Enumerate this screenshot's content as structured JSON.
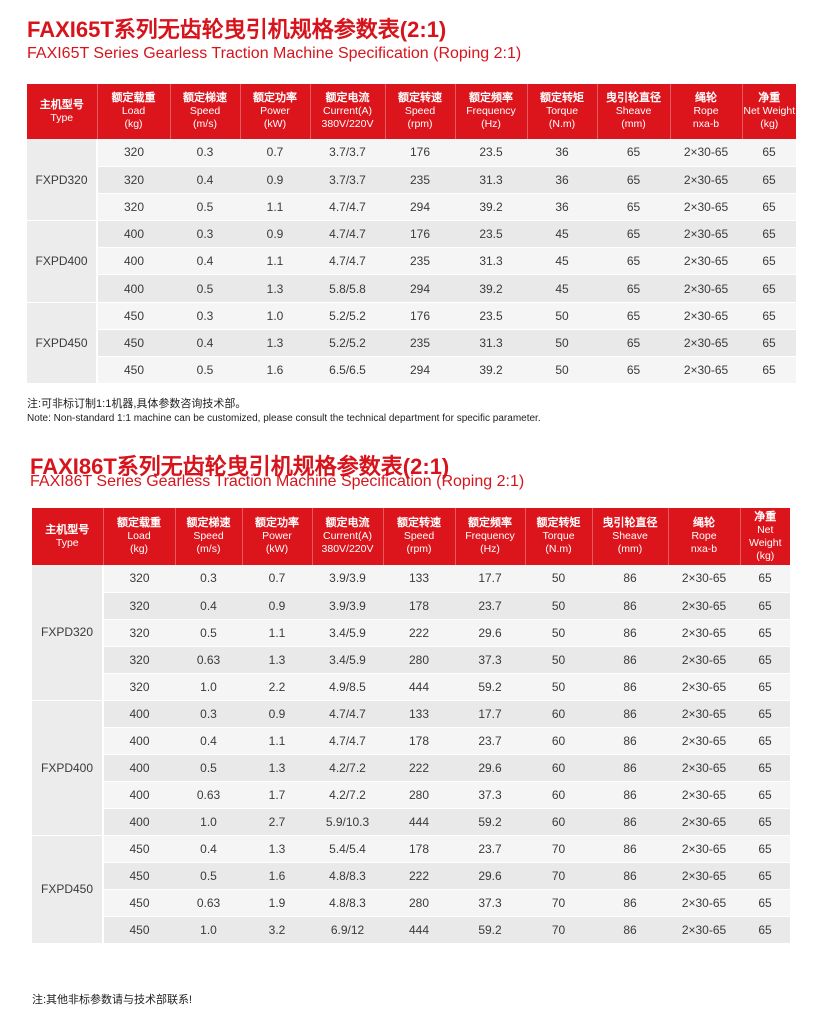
{
  "sections": [
    {
      "title": "FAXI65T系列无齿轮曳引机规格参数表(2:1)",
      "subtitle": "FAXI65T Series Gearless Traction Machine Specification (Roping 2:1)",
      "columns": [
        [
          "主机型号",
          "Type"
        ],
        [
          "额定载重",
          "Load",
          "(kg)"
        ],
        [
          "额定梯速",
          "Speed",
          "(m/s)"
        ],
        [
          "额定功率",
          "Power",
          "(kW)"
        ],
        [
          "额定电流",
          "Current(A)",
          "380V/220V"
        ],
        [
          "额定转速",
          "Speed",
          "(rpm)"
        ],
        [
          "额定频率",
          "Frequency",
          "(Hz)"
        ],
        [
          "额定转矩",
          "Torque",
          "(N.m)"
        ],
        [
          "曳引轮直径",
          "Sheave",
          "(mm)"
        ],
        [
          "绳轮",
          "Rope",
          "nxa-b"
        ],
        [
          "净重",
          "Net Weight",
          "(kg)"
        ]
      ],
      "groups": [
        {
          "model": "FXPD320",
          "rows": [
            [
              "320",
              "0.3",
              "0.7",
              "3.7/3.7",
              "176",
              "23.5",
              "36",
              "65",
              "2×30-65",
              "65"
            ],
            [
              "320",
              "0.4",
              "0.9",
              "3.7/3.7",
              "235",
              "31.3",
              "36",
              "65",
              "2×30-65",
              "65"
            ],
            [
              "320",
              "0.5",
              "1.1",
              "4.7/4.7",
              "294",
              "39.2",
              "36",
              "65",
              "2×30-65",
              "65"
            ]
          ]
        },
        {
          "model": "FXPD400",
          "rows": [
            [
              "400",
              "0.3",
              "0.9",
              "4.7/4.7",
              "176",
              "23.5",
              "45",
              "65",
              "2×30-65",
              "65"
            ],
            [
              "400",
              "0.4",
              "1.1",
              "4.7/4.7",
              "235",
              "31.3",
              "45",
              "65",
              "2×30-65",
              "65"
            ],
            [
              "400",
              "0.5",
              "1.3",
              "5.8/5.8",
              "294",
              "39.2",
              "45",
              "65",
              "2×30-65",
              "65"
            ]
          ]
        },
        {
          "model": "FXPD450",
          "rows": [
            [
              "450",
              "0.3",
              "1.0",
              "5.2/5.2",
              "176",
              "23.5",
              "50",
              "65",
              "2×30-65",
              "65"
            ],
            [
              "450",
              "0.4",
              "1.3",
              "5.2/5.2",
              "235",
              "31.3",
              "50",
              "65",
              "2×30-65",
              "65"
            ],
            [
              "450",
              "0.5",
              "1.6",
              "6.5/6.5",
              "294",
              "39.2",
              "50",
              "65",
              "2×30-65",
              "65"
            ]
          ]
        }
      ],
      "notes": [
        "注:可非标订制1:1机器,具体参数咨询技术部。",
        "Note: Non-standard 1:1 machine can be customized, please consult the technical department for specific parameter."
      ]
    },
    {
      "title": "FAXI86T系列无齿轮曳引机规格参数表(2:1)",
      "subtitle": "FAXI86T Series Gearless Traction Machine Specification (Roping 2:1)",
      "columns": [
        [
          "主机型号",
          "Type"
        ],
        [
          "额定载重",
          "Load",
          "(kg)"
        ],
        [
          "额定梯速",
          "Speed",
          "(m/s)"
        ],
        [
          "额定功率",
          "Power",
          "(kW)"
        ],
        [
          "额定电流",
          "Current(A)",
          "380V/220V"
        ],
        [
          "额定转速",
          "Speed",
          "(rpm)"
        ],
        [
          "额定频率",
          "Frequency",
          "(Hz)"
        ],
        [
          "额定转矩",
          "Torque",
          "(N.m)"
        ],
        [
          "曳引轮直径",
          "Sheave",
          "(mm)"
        ],
        [
          "绳轮",
          "Rope",
          "nxa-b"
        ],
        [
          "净重",
          "Net Weight",
          "(kg)"
        ]
      ],
      "groups": [
        {
          "model": "FXPD320",
          "rows": [
            [
              "320",
              "0.3",
              "0.7",
              "3.9/3.9",
              "133",
              "17.7",
              "50",
              "86",
              "2×30-65",
              "65"
            ],
            [
              "320",
              "0.4",
              "0.9",
              "3.9/3.9",
              "178",
              "23.7",
              "50",
              "86",
              "2×30-65",
              "65"
            ],
            [
              "320",
              "0.5",
              "1.1",
              "3.4/5.9",
              "222",
              "29.6",
              "50",
              "86",
              "2×30-65",
              "65"
            ],
            [
              "320",
              "0.63",
              "1.3",
              "3.4/5.9",
              "280",
              "37.3",
              "50",
              "86",
              "2×30-65",
              "65"
            ],
            [
              "320",
              "1.0",
              "2.2",
              "4.9/8.5",
              "444",
              "59.2",
              "50",
              "86",
              "2×30-65",
              "65"
            ]
          ]
        },
        {
          "model": "FXPD400",
          "rows": [
            [
              "400",
              "0.3",
              "0.9",
              "4.7/4.7",
              "133",
              "17.7",
              "60",
              "86",
              "2×30-65",
              "65"
            ],
            [
              "400",
              "0.4",
              "1.1",
              "4.7/4.7",
              "178",
              "23.7",
              "60",
              "86",
              "2×30-65",
              "65"
            ],
            [
              "400",
              "0.5",
              "1.3",
              "4.2/7.2",
              "222",
              "29.6",
              "60",
              "86",
              "2×30-65",
              "65"
            ],
            [
              "400",
              "0.63",
              "1.7",
              "4.2/7.2",
              "280",
              "37.3",
              "60",
              "86",
              "2×30-65",
              "65"
            ],
            [
              "400",
              "1.0",
              "2.7",
              "5.9/10.3",
              "444",
              "59.2",
              "60",
              "86",
              "2×30-65",
              "65"
            ]
          ]
        },
        {
          "model": "FXPD450",
          "rows": [
            [
              "450",
              "0.4",
              "1.3",
              "5.4/5.4",
              "178",
              "23.7",
              "70",
              "86",
              "2×30-65",
              "65"
            ],
            [
              "450",
              "0.5",
              "1.6",
              "4.8/8.3",
              "222",
              "29.6",
              "70",
              "86",
              "2×30-65",
              "65"
            ],
            [
              "450",
              "0.63",
              "1.9",
              "4.8/8.3",
              "280",
              "37.3",
              "70",
              "86",
              "2×30-65",
              "65"
            ],
            [
              "450",
              "1.0",
              "3.2",
              "6.9/12",
              "444",
              "59.2",
              "70",
              "86",
              "2×30-65",
              "65"
            ]
          ]
        }
      ],
      "notes": []
    }
  ],
  "footer_note": "注:其他非标参数请与技术部联系!"
}
